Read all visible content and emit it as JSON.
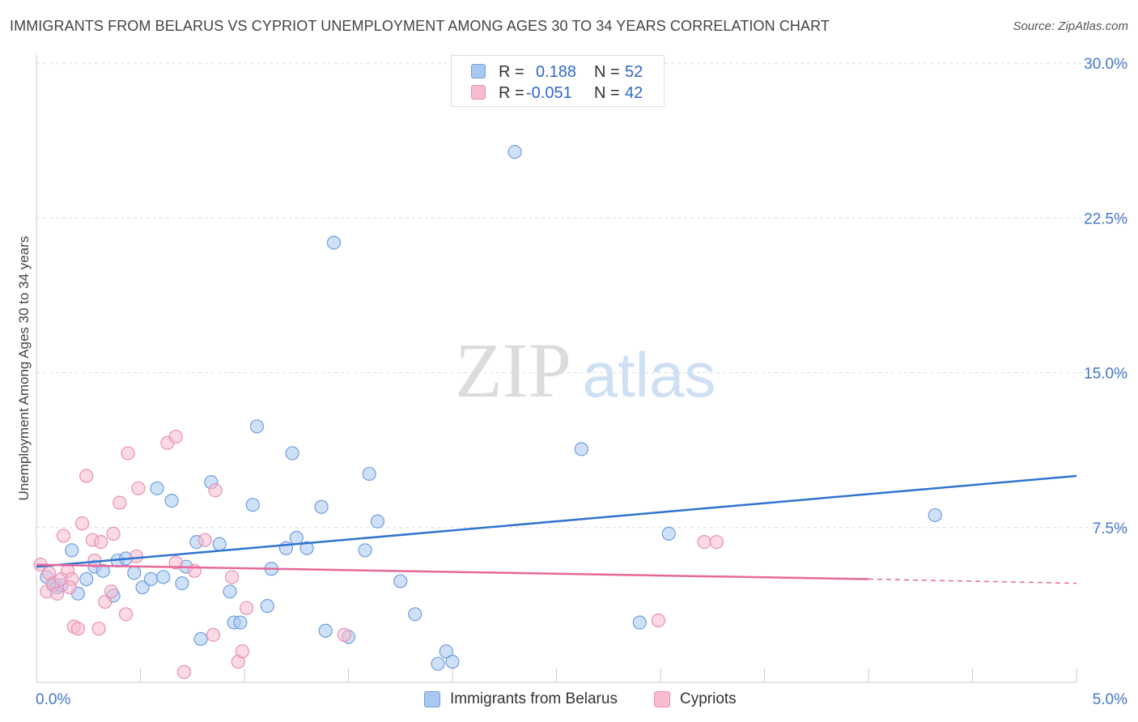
{
  "title": "IMMIGRANTS FROM BELARUS VS CYPRIOT UNEMPLOYMENT AMONG AGES 30 TO 34 YEARS CORRELATION CHART",
  "source": "Source: ZipAtlas.com",
  "watermark": {
    "zip": "ZIP",
    "atlas": "atlas"
  },
  "colors": {
    "blue_fill": "#a8c8f0",
    "blue_stroke": "#6f9ee0",
    "blue_line": "#2f74d0",
    "pink_fill": "#f8bcd0",
    "pink_stroke": "#ea8fb0",
    "pink_line": "#e8679a",
    "grid": "#dddddd",
    "axis_text": "#4477cc"
  },
  "stats": [
    {
      "r_label": "R =",
      "r_value": "0.188",
      "n_label": "N =",
      "n_value": "52",
      "color": "#a8c8f0"
    },
    {
      "r_label": "R =",
      "r_value": "-0.051",
      "n_label": "N =",
      "n_value": "42",
      "color": "#f8bcd0"
    }
  ],
  "chart_data": {
    "type": "scatter",
    "title": "IMMIGRANTS FROM BELARUS VS CYPRIOT UNEMPLOYMENT AMONG AGES 30 TO 34 YEARS CORRELATION CHART",
    "xlabel": "",
    "ylabel": "Unemployment Among Ages 30 to 34 years",
    "xlim": [
      0,
      5
    ],
    "ylim": [
      0,
      30
    ],
    "x_tick_labels": [
      "0.0%",
      "5.0%"
    ],
    "y_ticks": [
      7.5,
      15,
      22.5,
      30
    ],
    "y_tick_labels": [
      "7.5%",
      "15.0%",
      "22.5%",
      "30.0%"
    ],
    "grid": true,
    "legend_position": "bottom-center",
    "series": [
      {
        "name": "Immigrants from Belarus",
        "color": "#a8c8f0",
        "trend": {
          "x": [
            0.0,
            5.0
          ],
          "y": [
            5.6,
            10.0
          ]
        },
        "points": [
          [
            0.05,
            5.1
          ],
          [
            0.08,
            4.7
          ],
          [
            0.1,
            4.6
          ],
          [
            0.12,
            4.7
          ],
          [
            0.17,
            6.4
          ],
          [
            0.2,
            4.3
          ],
          [
            0.24,
            5.0
          ],
          [
            0.28,
            5.6
          ],
          [
            0.32,
            5.4
          ],
          [
            0.37,
            4.2
          ],
          [
            0.39,
            5.9
          ],
          [
            0.43,
            6.0
          ],
          [
            0.47,
            5.3
          ],
          [
            0.51,
            4.6
          ],
          [
            0.55,
            5.0
          ],
          [
            0.58,
            9.4
          ],
          [
            0.61,
            5.1
          ],
          [
            0.65,
            8.8
          ],
          [
            0.7,
            4.8
          ],
          [
            0.72,
            5.6
          ],
          [
            0.77,
            6.8
          ],
          [
            0.79,
            2.1
          ],
          [
            0.84,
            9.7
          ],
          [
            0.88,
            6.7
          ],
          [
            0.93,
            4.4
          ],
          [
            0.95,
            2.9
          ],
          [
            0.98,
            2.9
          ],
          [
            1.04,
            8.6
          ],
          [
            1.06,
            12.4
          ],
          [
            1.11,
            3.7
          ],
          [
            1.13,
            5.5
          ],
          [
            1.2,
            6.5
          ],
          [
            1.25,
            7.0
          ],
          [
            1.3,
            6.5
          ],
          [
            1.37,
            8.5
          ],
          [
            1.39,
            2.5
          ],
          [
            1.43,
            21.3
          ],
          [
            1.5,
            2.2
          ],
          [
            1.58,
            6.4
          ],
          [
            1.6,
            10.1
          ],
          [
            1.64,
            7.8
          ],
          [
            1.75,
            4.9
          ],
          [
            1.82,
            3.3
          ],
          [
            1.93,
            0.9
          ],
          [
            1.97,
            1.5
          ],
          [
            2.0,
            1.0
          ],
          [
            2.3,
            25.7
          ],
          [
            2.62,
            11.3
          ],
          [
            2.9,
            2.9
          ],
          [
            3.04,
            7.2
          ],
          [
            4.32,
            8.1
          ],
          [
            1.23,
            11.1
          ]
        ]
      },
      {
        "name": "Cypriots",
        "color": "#f8bcd0",
        "trend": {
          "x": [
            0.0,
            4.0
          ],
          "y": [
            5.7,
            5.0
          ]
        },
        "trend_dashed": {
          "x": [
            4.0,
            5.0
          ],
          "y": [
            5.0,
            4.8
          ]
        },
        "points": [
          [
            0.02,
            5.7
          ],
          [
            0.05,
            4.4
          ],
          [
            0.08,
            4.8
          ],
          [
            0.1,
            4.3
          ],
          [
            0.12,
            5.0
          ],
          [
            0.13,
            7.1
          ],
          [
            0.15,
            5.4
          ],
          [
            0.17,
            5.0
          ],
          [
            0.18,
            2.7
          ],
          [
            0.2,
            2.6
          ],
          [
            0.22,
            7.7
          ],
          [
            0.24,
            10.0
          ],
          [
            0.27,
            6.9
          ],
          [
            0.28,
            5.9
          ],
          [
            0.3,
            2.6
          ],
          [
            0.31,
            6.8
          ],
          [
            0.33,
            3.9
          ],
          [
            0.36,
            4.4
          ],
          [
            0.37,
            7.2
          ],
          [
            0.4,
            8.7
          ],
          [
            0.43,
            3.3
          ],
          [
            0.44,
            11.1
          ],
          [
            0.48,
            6.1
          ],
          [
            0.49,
            9.4
          ],
          [
            0.63,
            11.6
          ],
          [
            0.67,
            5.8
          ],
          [
            0.67,
            11.9
          ],
          [
            0.71,
            0.5
          ],
          [
            0.76,
            5.4
          ],
          [
            0.81,
            6.9
          ],
          [
            0.85,
            2.3
          ],
          [
            0.86,
            9.3
          ],
          [
            0.97,
            1.0
          ],
          [
            0.99,
            1.5
          ],
          [
            1.01,
            3.6
          ],
          [
            1.48,
            2.3
          ],
          [
            2.99,
            3.0
          ],
          [
            3.21,
            6.8
          ],
          [
            3.27,
            6.8
          ],
          [
            0.94,
            5.1
          ],
          [
            0.06,
            5.3
          ],
          [
            0.16,
            4.6
          ]
        ]
      }
    ]
  },
  "bottom_legend": [
    {
      "label": "Immigrants from Belarus",
      "color": "#a8c8f0"
    },
    {
      "label": "Cypriots",
      "color": "#f8bcd0"
    }
  ]
}
